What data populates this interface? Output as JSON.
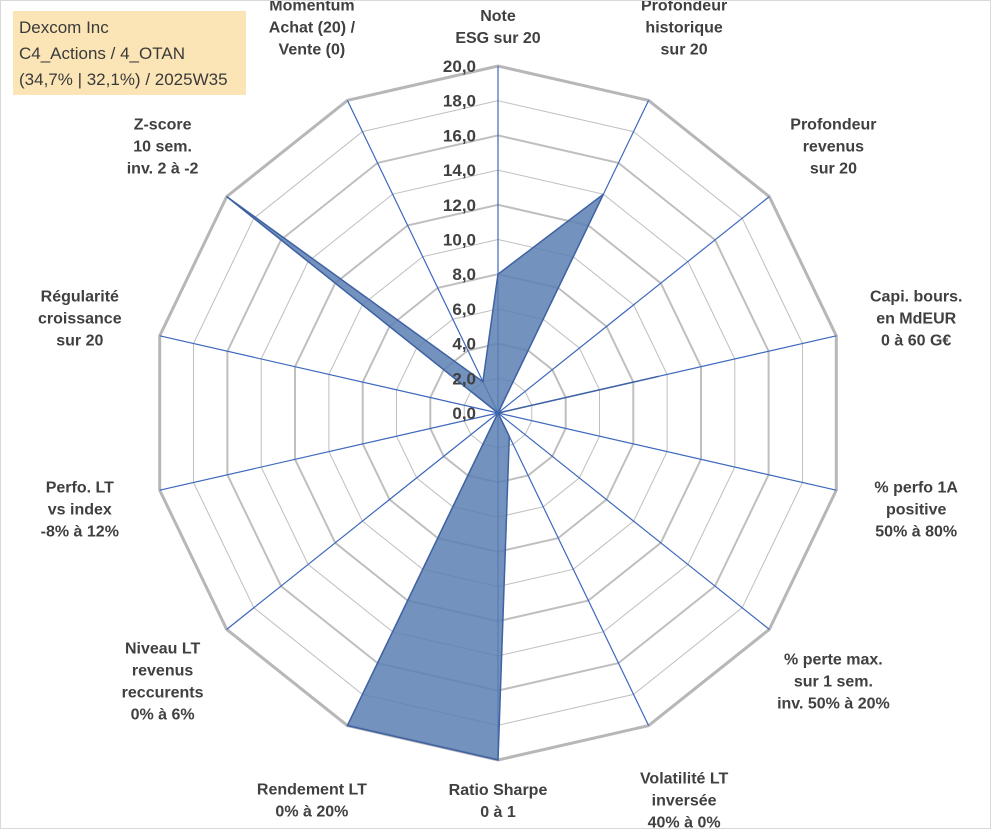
{
  "infobox": {
    "line1": "Dexcom Inc",
    "line2": "C4_Actions / 4_OTAN",
    "line3": "(34,7% | 32,1%) / 2025W35"
  },
  "chart_data": {
    "type": "radar",
    "rmin": 0,
    "rmax": 20,
    "ticks": [
      0,
      2,
      4,
      6,
      8,
      10,
      12,
      14,
      16,
      18,
      20
    ],
    "tick_labels": [
      "0,0",
      "2,0",
      "4,0",
      "6,0",
      "8,0",
      "10,0",
      "12,0",
      "14,0",
      "16,0",
      "18,0",
      "20,0"
    ],
    "axes": [
      [
        "Note",
        "ESG sur 20"
      ],
      [
        "Profondeur",
        "historique",
        "sur 20"
      ],
      [
        "Profondeur",
        "revenus",
        "sur 20"
      ],
      [
        "Capi. bours.",
        "en MdEUR",
        "0 à 60 G€"
      ],
      [
        "% perfo 1A",
        "positive",
        "50% à 80%"
      ],
      [
        "% perte max.",
        "sur 1 sem.",
        "inv. 50% à 20%"
      ],
      [
        "Volatilité LT",
        "inversée",
        "40% à 0%"
      ],
      [
        "Ratio Sharpe",
        "0 à 1"
      ],
      [
        "Rendement LT",
        "0% à 20%"
      ],
      [
        "Niveau LT",
        "revenus",
        "reccurents",
        "0% à 6%"
      ],
      [
        "Perfo. LT",
        "vs index",
        "-8% à 12%"
      ],
      [
        "Régularité",
        "croissance",
        "sur 20"
      ],
      [
        "Z-score",
        "10 sem.",
        "inv. 2 à -2"
      ],
      [
        "Momentum",
        "Achat (20) /",
        "Vente (0)"
      ]
    ],
    "values": [
      8,
      14,
      0,
      9.5,
      0,
      0,
      1.5,
      20,
      20,
      0,
      0,
      0,
      20,
      2
    ],
    "grid": true,
    "colors": {
      "fill": "#5b7fb2",
      "stroke": "#3f62a3",
      "grid": "#bfbfbf",
      "outer": "#b7b7b7",
      "spoke": "#3d68bd",
      "text": "#404040"
    }
  }
}
